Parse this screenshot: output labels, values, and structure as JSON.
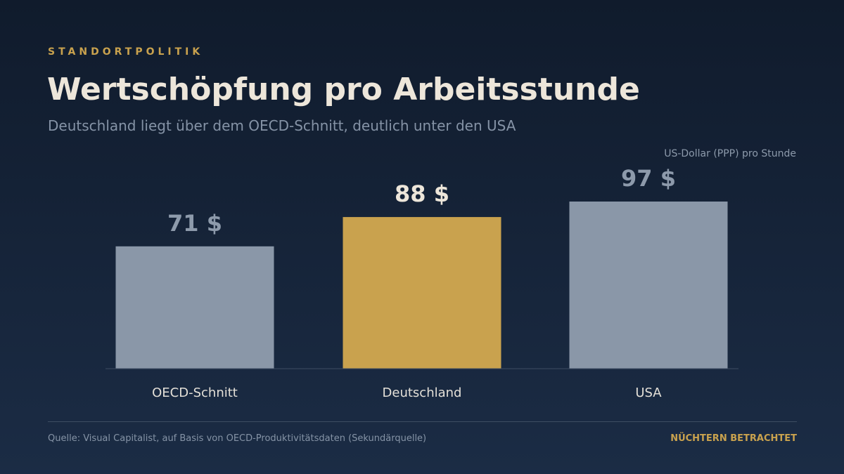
{
  "header": {
    "kicker": "STANDORTPOLITIK",
    "title": "Wertschöpfung pro Arbeitsstunde",
    "subtitle": "Deutschland liegt über dem OECD-Schnitt, deutlich unter den USA"
  },
  "chart_data": {
    "type": "bar",
    "title": "Wertschöpfung pro Arbeitsstunde",
    "subtitle": "Deutschland liegt über dem OECD-Schnitt, deutlich unter den USA",
    "unit_label": "US-Dollar (PPP) pro Stunde",
    "categories": [
      "OECD-Schnitt",
      "Deutschland",
      "USA"
    ],
    "values": [
      71,
      88,
      97
    ],
    "value_labels": [
      "71 $",
      "88 $",
      "97 $"
    ],
    "highlight_index": 1,
    "colors": {
      "bar": "#8a97a8",
      "highlight": "#c9a24e",
      "label": "#8d9aab",
      "highlight_label": "#ede6da",
      "category_label": "#e4e0d8",
      "baseline": "#3e4d63"
    },
    "ylim": [
      0,
      97
    ],
    "grid": false,
    "legend": "none"
  },
  "footer": {
    "source": "Quelle: Visual Capitalist, auf Basis von OECD-Produktivitätsdaten (Sekundärquelle)",
    "brand": "NÜCHTERN BETRACHTET"
  }
}
